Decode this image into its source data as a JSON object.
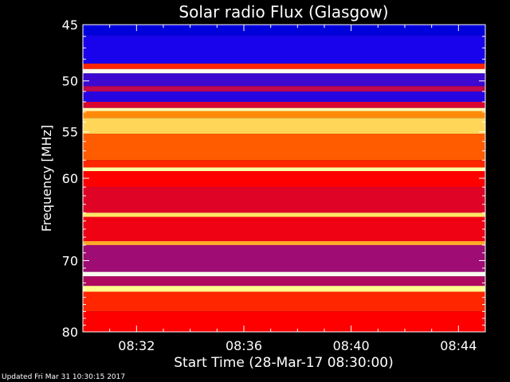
{
  "chart_data": {
    "type": "heatmap",
    "title": "Solar radio Flux (Glasgow)",
    "xlabel": "Start Time (28-Mar-17 08:30:00)",
    "ylabel": "Frequency [MHz]",
    "x_unit": "time (HH:MM)",
    "xlim": [
      "08:30:00",
      "08:45:00"
    ],
    "ylim": [
      80,
      45
    ],
    "x_ticks": [
      "08:32",
      "08:36",
      "08:40",
      "08:44"
    ],
    "y_ticks": [
      45,
      50,
      55,
      60,
      70,
      80
    ],
    "y_scale": "log",
    "colormap": [
      "#000080",
      "#0000ff",
      "#7a10a0",
      "#ff0000",
      "#ff8000",
      "#ffff80",
      "#ffffff"
    ],
    "bands": [
      {
        "from": 45.0,
        "to": 45.9,
        "level": 0.12
      },
      {
        "from": 45.9,
        "to": 48.4,
        "level": 0.2
      },
      {
        "from": 48.4,
        "to": 48.9,
        "level": 0.55
      },
      {
        "from": 48.9,
        "to": 49.3,
        "level": 0.98
      },
      {
        "from": 49.3,
        "to": 50.5,
        "level": 0.25
      },
      {
        "from": 50.5,
        "to": 51.0,
        "level": 0.42
      },
      {
        "from": 51.0,
        "to": 52.0,
        "level": 0.22
      },
      {
        "from": 52.0,
        "to": 52.6,
        "level": 0.45
      },
      {
        "from": 52.6,
        "to": 52.9,
        "level": 0.9
      },
      {
        "from": 52.9,
        "to": 53.6,
        "level": 0.68
      },
      {
        "from": 53.6,
        "to": 55.2,
        "level": 0.78
      },
      {
        "from": 55.2,
        "to": 58.0,
        "level": 0.62
      },
      {
        "from": 58.0,
        "to": 58.8,
        "level": 0.55
      },
      {
        "from": 58.8,
        "to": 59.2,
        "level": 0.88
      },
      {
        "from": 59.2,
        "to": 61.0,
        "level": 0.5
      },
      {
        "from": 61.0,
        "to": 64.0,
        "level": 0.46
      },
      {
        "from": 64.0,
        "to": 64.5,
        "level": 0.8
      },
      {
        "from": 64.5,
        "to": 67.5,
        "level": 0.48
      },
      {
        "from": 67.5,
        "to": 68.0,
        "level": 0.72
      },
      {
        "from": 68.0,
        "to": 71.5,
        "level": 0.38
      },
      {
        "from": 71.5,
        "to": 72.1,
        "level": 0.98
      },
      {
        "from": 72.1,
        "to": 73.4,
        "level": 0.4
      },
      {
        "from": 73.4,
        "to": 74.2,
        "level": 0.85
      },
      {
        "from": 74.2,
        "to": 77.0,
        "level": 0.55
      },
      {
        "from": 77.0,
        "to": 80.0,
        "level": 0.5
      }
    ]
  },
  "footer": {
    "updated": "Updated Fri Mar 31 10:30:15 2017"
  }
}
